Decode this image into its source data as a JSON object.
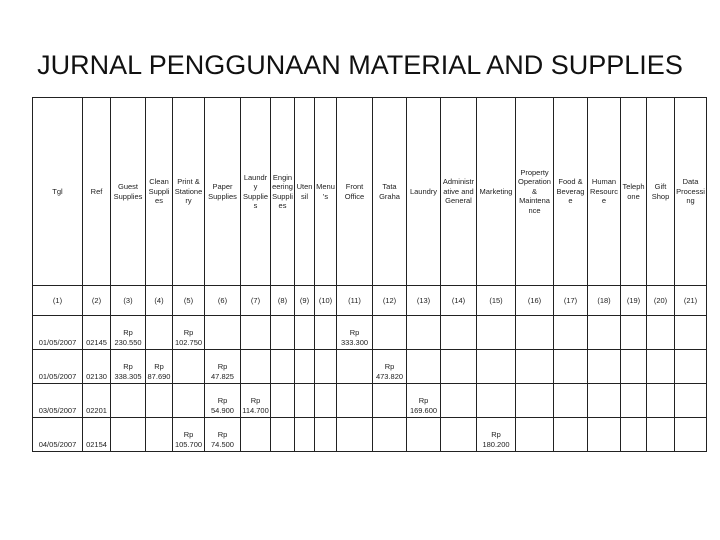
{
  "title": "JURNAL PENGGUNAAN MATERIAL AND SUPPLIES",
  "table": {
    "headers": [
      "Tgl",
      "Ref",
      "Guest Supplies",
      "Clean Supplies",
      "Print & Stationery",
      "Paper Supplies",
      "Laundry Supplies",
      "Engineering Supplies",
      "Utensil",
      "Menu's",
      "Front Office",
      "Tata Graha",
      "Laundry",
      "Administrative and General",
      "Marketing",
      "Property Operation & Maintenance",
      "Food & Beverage",
      "Human Resource",
      "Telephone",
      "Gift Shop",
      "Data Processing"
    ],
    "numbers": [
      "(1)",
      "(2)",
      "(3)",
      "(4)",
      "(5)",
      "(6)",
      "(7)",
      "(8)",
      "(9)",
      "(10)",
      "(11)",
      "(12)",
      "(13)",
      "(14)",
      "(15)",
      "(16)",
      "(17)",
      "(18)",
      "(19)",
      "(20)",
      "(21)"
    ],
    "rows": [
      [
        "01/05/2007",
        "02145",
        "Rp 230.550",
        null,
        "Rp 102.750",
        null,
        null,
        null,
        null,
        null,
        "Rp 333.300",
        null,
        null,
        null,
        null,
        null,
        null,
        null,
        null,
        null,
        null
      ],
      [
        "01/05/2007",
        "02130",
        "Rp 338.305",
        "Rp 87.690",
        null,
        "Rp 47.825",
        null,
        null,
        null,
        null,
        null,
        "Rp 473.820",
        null,
        null,
        null,
        null,
        null,
        null,
        null,
        null,
        null
      ],
      [
        "03/05/2007",
        "02201",
        null,
        null,
        null,
        "Rp 54.900",
        "Rp 114.700",
        null,
        null,
        null,
        null,
        null,
        "Rp 169.600",
        null,
        null,
        null,
        null,
        null,
        null,
        null,
        null
      ],
      [
        "04/05/2007",
        "02154",
        null,
        null,
        "Rp 105.700",
        "Rp 74.500",
        null,
        null,
        null,
        null,
        null,
        null,
        null,
        null,
        "Rp 180.200",
        null,
        null,
        null,
        null,
        null,
        null
      ]
    ]
  }
}
